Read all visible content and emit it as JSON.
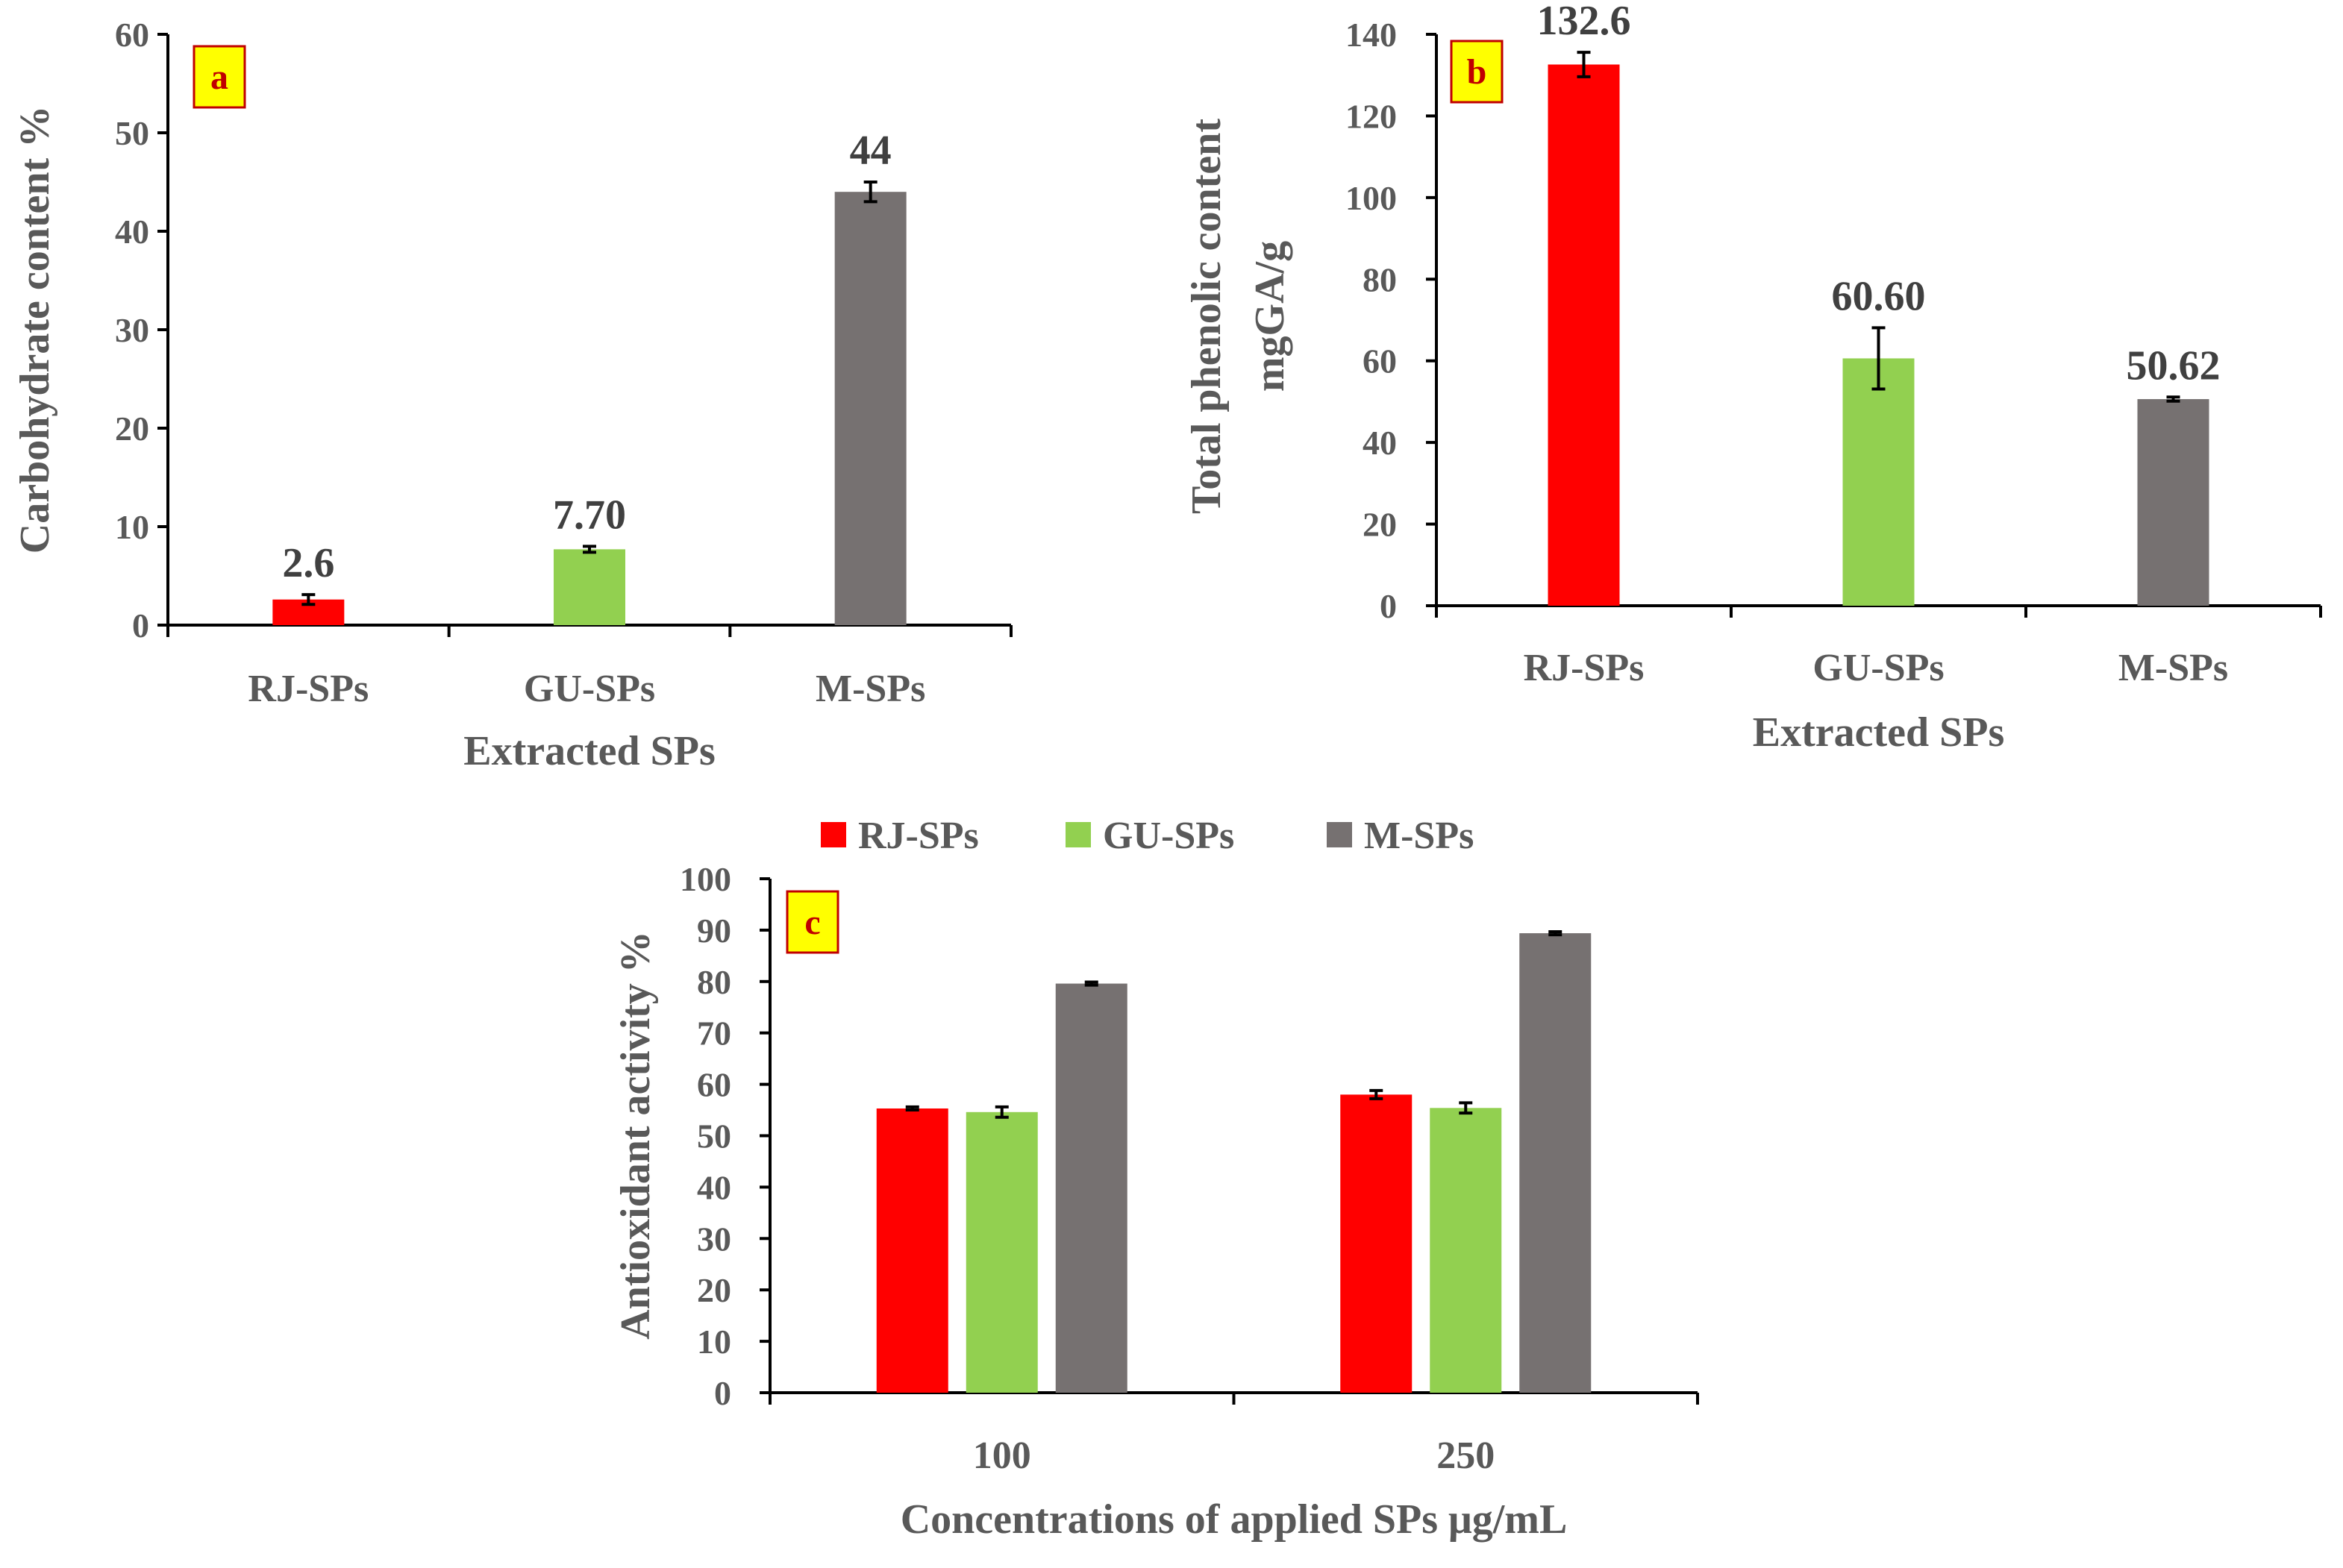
{
  "colors": {
    "rj": "#ff0000",
    "gu": "#92d050",
    "m": "#767171",
    "axis": "#000000",
    "text": "#595959",
    "badge_fill": "#ffff00",
    "badge_border": "#c00000",
    "badge_text": "#c00000"
  },
  "chart_data": [
    {
      "id": "a",
      "type": "bar",
      "badge": "a",
      "categories": [
        "RJ-SPs",
        "GU-SPs",
        "M-SPs"
      ],
      "values": [
        2.6,
        7.7,
        44
      ],
      "errors": [
        0.5,
        0.3,
        1.0
      ],
      "data_labels": [
        "2.6",
        "7.70",
        "44"
      ],
      "bar_colors": [
        "#ff0000",
        "#92d050",
        "#767171"
      ],
      "ylabel": "Carbohydrate content %",
      "xlabel": "Extracted SPs",
      "ylim": [
        0,
        60
      ],
      "ytick_step": 10,
      "grid": false
    },
    {
      "id": "b",
      "type": "bar",
      "badge": "b",
      "categories": [
        "RJ-SPs",
        "GU-SPs",
        "M-SPs"
      ],
      "values": [
        132.6,
        60.6,
        50.62
      ],
      "errors": [
        3.0,
        7.5,
        0.5
      ],
      "data_labels": [
        "132.6",
        "60.60",
        "50.62"
      ],
      "bar_colors": [
        "#ff0000",
        "#92d050",
        "#767171"
      ],
      "ylabel_lines": [
        "Total phenolic content",
        "mgGA/g"
      ],
      "xlabel": "Extracted SPs",
      "ylim": [
        0,
        140
      ],
      "ytick_step": 20,
      "grid": false
    },
    {
      "id": "c",
      "type": "bar",
      "badge": "c",
      "categories": [
        "100",
        "250"
      ],
      "series": [
        {
          "name": "RJ-SPs",
          "color": "#ff0000",
          "values": [
            55.3,
            58.0
          ],
          "errors": [
            0.3,
            0.8
          ]
        },
        {
          "name": "GU-SPs",
          "color": "#92d050",
          "values": [
            54.6,
            55.4
          ],
          "errors": [
            1.0,
            1.0
          ]
        },
        {
          "name": "M-SPs",
          "color": "#767171",
          "values": [
            79.6,
            89.4
          ],
          "errors": [
            0.3,
            0.3
          ]
        }
      ],
      "ylabel": "Antioxidant activity %",
      "xlabel": "Concentrations of applied SPs μg/mL",
      "ylim": [
        0,
        100
      ],
      "ytick_step": 10,
      "legend_position": "top",
      "grid": false
    }
  ]
}
